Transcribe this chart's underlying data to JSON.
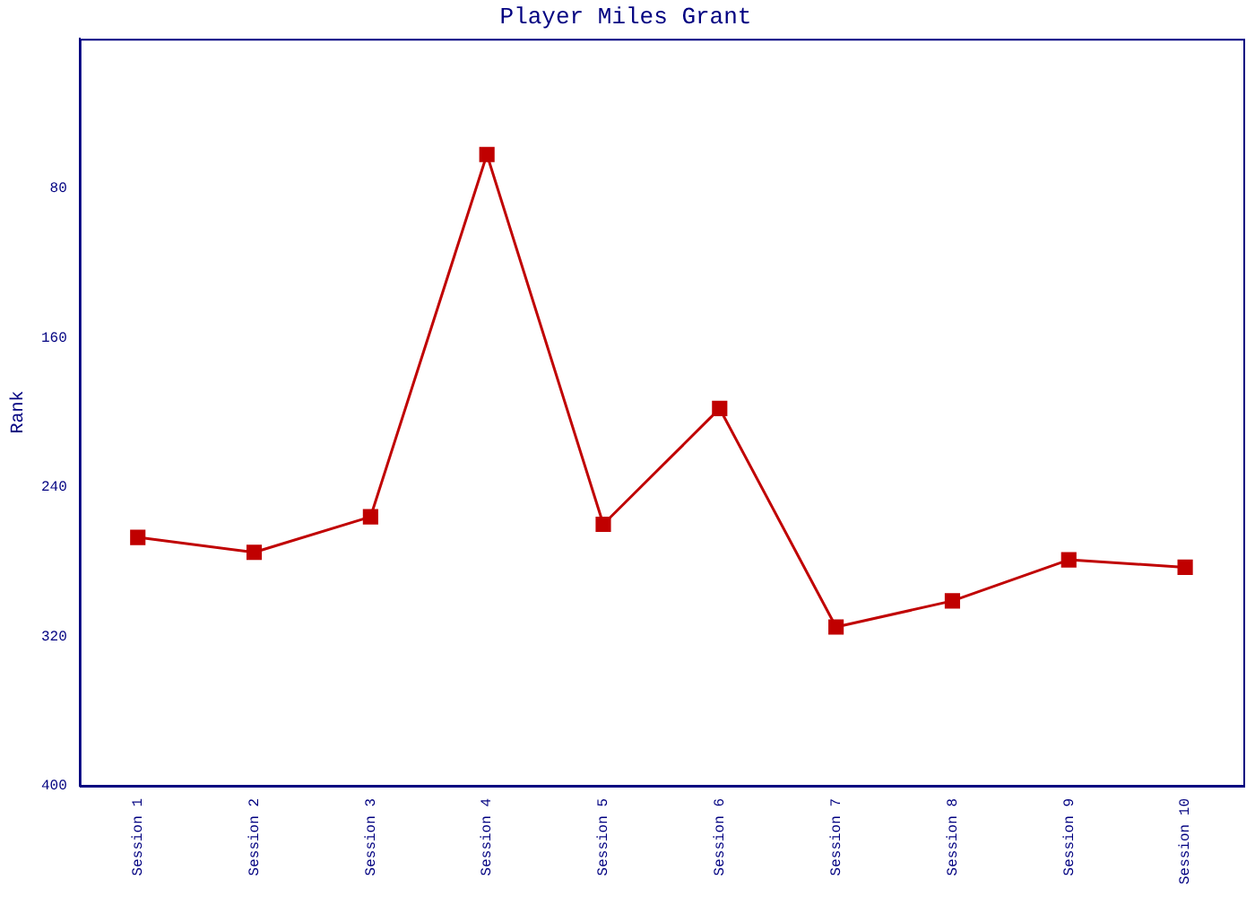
{
  "chart_data": {
    "type": "line",
    "title": "Player Miles Grant",
    "ylabel": "Rank",
    "categories": [
      "Session 1",
      "Session 2",
      "Session 3",
      "Session 4",
      "Session 5",
      "Session 6",
      "Session 7",
      "Session 8",
      "Session 9",
      "Session 10"
    ],
    "series": [
      {
        "color": "#c00000",
        "values": [
          267,
          275,
          256,
          62,
          260,
          198,
          315,
          301,
          279,
          283
        ]
      }
    ],
    "ylim": [
      400,
      0
    ],
    "yticks": [
      80,
      160,
      240,
      320,
      400
    ],
    "grid": false,
    "legend": false,
    "marker": "square",
    "line_style": "solid"
  }
}
